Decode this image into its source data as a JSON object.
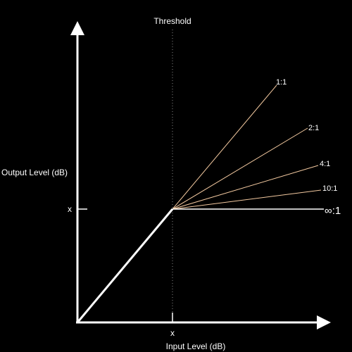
{
  "threshold_label": "Threshold",
  "y_axis_label": "Output Level (dB)",
  "x_axis_label": "Input Level (dB)",
  "x_threshold_tick": "x",
  "y_threshold_tick": "x",
  "colors": {
    "background": "#000000",
    "axis": "#ffffff",
    "threshold_line": "#888888",
    "ratio_line": "#f3c9a0"
  },
  "ratios": [
    {
      "label": "1:1",
      "color": "#f3c9a0"
    },
    {
      "label": "2:1",
      "color": "#f3c9a0"
    },
    {
      "label": "4:1",
      "color": "#f3c9a0"
    },
    {
      "label": "10:1",
      "color": "#f3c9a0"
    },
    {
      "label": "∞:1",
      "color": "#ffffff"
    }
  ]
}
